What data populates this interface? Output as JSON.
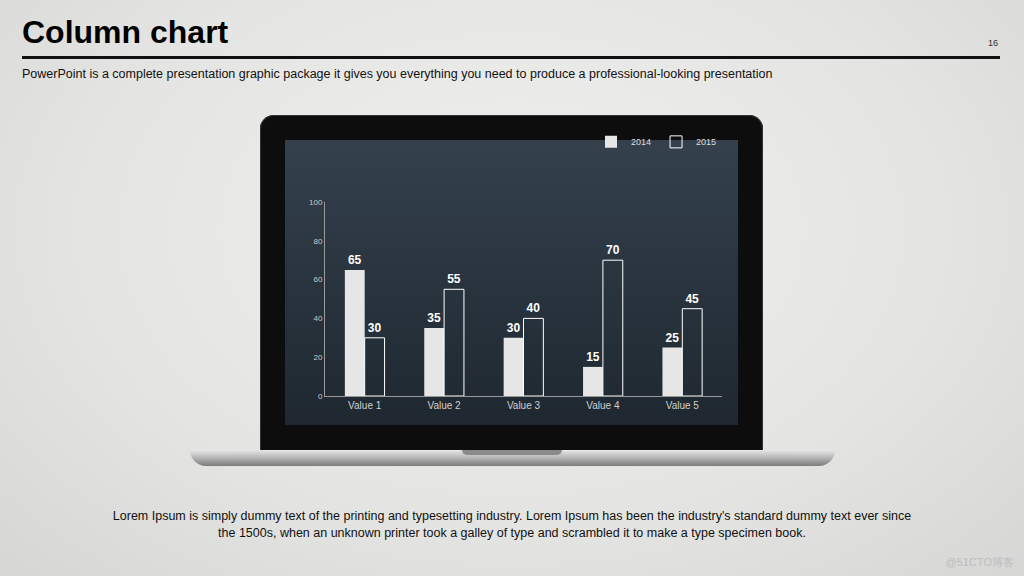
{
  "slide": {
    "title": "Column chart",
    "page": "16",
    "subtitle": "PowerPoint is a complete presentation graphic package it gives you everything you need to produce a professional-looking presentation",
    "body": "Lorem Ipsum is simply dummy text of the printing and typesetting industry. Lorem Ipsum has been the industry's standard dummy text ever since the 1500s, when an unknown printer took a galley of type and scrambled it to make a type specimen book.",
    "watermark": "@51CTO博客"
  },
  "chart_data": {
    "type": "bar",
    "categories": [
      "Value 1",
      "Value 2",
      "Value 3",
      "Value 4",
      "Value 5"
    ],
    "series": [
      {
        "name": "2014",
        "color": "#e6e6e6",
        "marker": "filled",
        "values": [
          65,
          35,
          30,
          15,
          25
        ]
      },
      {
        "name": "2015",
        "color": "#ffffff",
        "marker": "outline",
        "values": [
          30,
          55,
          40,
          70,
          45
        ]
      }
    ],
    "ylim": [
      0,
      100
    ],
    "yticks": [
      0,
      20,
      40,
      60,
      80,
      100
    ],
    "grid": false,
    "legend": "top right",
    "data_labels": true
  }
}
